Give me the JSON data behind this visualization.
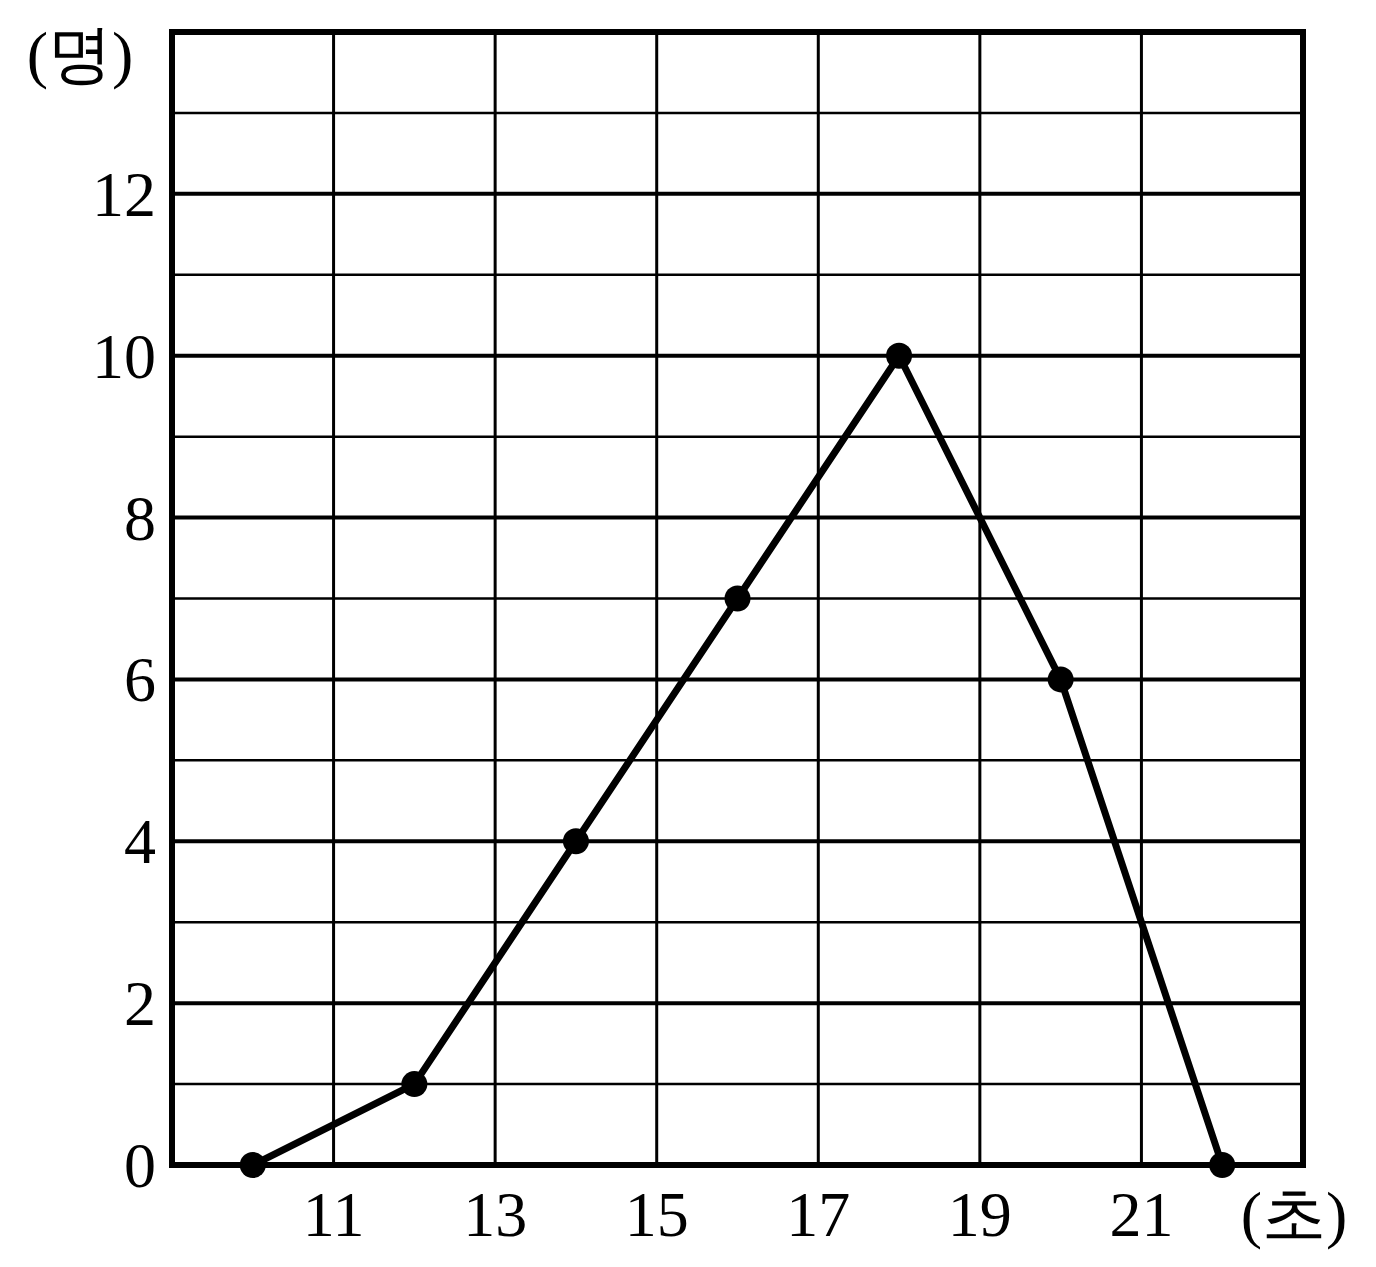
{
  "chart_data": {
    "type": "line",
    "xlabel": "(초)",
    "ylabel": "(명)",
    "x": [
      10,
      12,
      14,
      16,
      18,
      20,
      22
    ],
    "series": [
      {
        "color": "#000000",
        "values": [
          0,
          1,
          4,
          7,
          10,
          6,
          0
        ]
      }
    ],
    "xlim": [
      9,
      23
    ],
    "xticks": [
      11,
      13,
      15,
      17,
      19,
      21
    ],
    "ylim": [
      0,
      14
    ],
    "yticks": [
      0,
      {
        "value": 1,
        "label": null
      },
      2,
      {
        "value": 3,
        "label": null
      },
      4,
      {
        "value": 5,
        "label": null
      },
      6,
      {
        "value": 7,
        "label": null
      },
      8,
      {
        "value": 9,
        "label": null
      },
      10,
      {
        "value": 11,
        "label": null
      },
      12,
      {
        "value": 13,
        "label": null
      },
      {
        "value": 14,
        "label": null
      }
    ],
    "grid": true,
    "marker": "circle",
    "line_style": "solid"
  }
}
